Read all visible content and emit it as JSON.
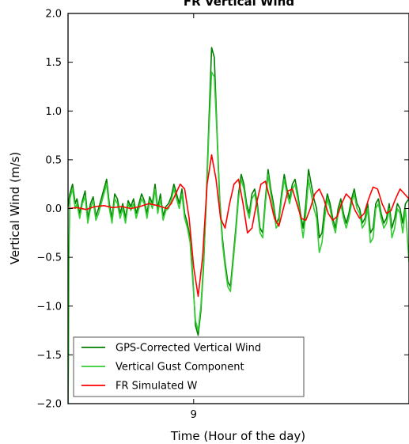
{
  "chart_data": {
    "type": "line",
    "title": "FR Vertical Wind",
    "xlabel": "Time (Hour of the day)",
    "ylabel": "Vertical Wind (m/s)",
    "xlim": [
      8.86,
      9.24
    ],
    "ylim": [
      -2.0,
      2.0
    ],
    "xticks": [
      {
        "value": 9.0,
        "label": "9"
      }
    ],
    "yticks": [
      {
        "value": 2.0,
        "label": "2.0"
      },
      {
        "value": 1.5,
        "label": "1.5"
      },
      {
        "value": 1.0,
        "label": "1.0"
      },
      {
        "value": 0.5,
        "label": "0.5"
      },
      {
        "value": 0.0,
        "label": "0.0"
      },
      {
        "value": -0.5,
        "label": "−0.5"
      },
      {
        "value": -1.0,
        "label": "−1.0"
      },
      {
        "value": -1.5,
        "label": "−1.5"
      },
      {
        "value": -2.0,
        "label": "−2.0"
      }
    ],
    "grid": false,
    "legend_position": "lower-left",
    "series": [
      {
        "name": "GPS-Corrected Vertical Wind",
        "color": "#007f00",
        "x": [
          8.86,
          8.862,
          8.865,
          8.868,
          8.87,
          8.873,
          8.876,
          8.879,
          8.882,
          8.885,
          8.888,
          8.891,
          8.894,
          8.897,
          8.9,
          8.903,
          8.906,
          8.909,
          8.912,
          8.915,
          8.918,
          8.921,
          8.924,
          8.927,
          8.93,
          8.933,
          8.936,
          8.939,
          8.942,
          8.945,
          8.948,
          8.951,
          8.954,
          8.957,
          8.96,
          8.963,
          8.966,
          8.969,
          8.972,
          8.975,
          8.978,
          8.981,
          8.984,
          8.987,
          8.99,
          8.993,
          8.996,
          8.999,
          9.002,
          9.005,
          9.008,
          9.011,
          9.014,
          9.017,
          9.02,
          9.023,
          9.026,
          9.029,
          9.032,
          9.035,
          9.038,
          9.041,
          9.044,
          9.047,
          9.05,
          9.053,
          9.056,
          9.059,
          9.062,
          9.065,
          9.068,
          9.071,
          9.074,
          9.077,
          9.08,
          9.083,
          9.086,
          9.089,
          9.092,
          9.095,
          9.098,
          9.101,
          9.104,
          9.107,
          9.11,
          9.113,
          9.116,
          9.119,
          9.122,
          9.125,
          9.128,
          9.131,
          9.134,
          9.137,
          9.14,
          9.143,
          9.146,
          9.149,
          9.152,
          9.155,
          9.158,
          9.161,
          9.164,
          9.167,
          9.17,
          9.173,
          9.176,
          9.179,
          9.182,
          9.185,
          9.188,
          9.191,
          9.194,
          9.197,
          9.2,
          9.203,
          9.206,
          9.209,
          9.212,
          9.215,
          9.218,
          9.221,
          9.224,
          9.227,
          9.23,
          9.233,
          9.236,
          9.24
        ],
        "values": [
          0.02,
          0.15,
          0.25,
          0.05,
          0.1,
          -0.05,
          0.08,
          0.18,
          -0.1,
          0.05,
          0.12,
          -0.08,
          0.0,
          0.1,
          0.2,
          0.3,
          0.05,
          -0.1,
          0.15,
          0.1,
          -0.05,
          0.05,
          -0.1,
          0.08,
          0.02,
          0.1,
          -0.05,
          0.05,
          0.15,
          0.08,
          -0.05,
          0.12,
          0.05,
          0.25,
          0.0,
          0.15,
          -0.08,
          0.02,
          0.05,
          0.12,
          0.25,
          0.15,
          0.05,
          0.2,
          -0.05,
          -0.15,
          -0.3,
          -0.7,
          -1.2,
          -1.3,
          -1.05,
          -0.6,
          0.1,
          0.9,
          1.65,
          1.55,
          0.8,
          0.1,
          -0.3,
          -0.55,
          -0.75,
          -0.8,
          -0.5,
          -0.2,
          0.15,
          0.35,
          0.25,
          0.05,
          -0.05,
          0.15,
          0.2,
          0.05,
          -0.2,
          -0.25,
          0.1,
          0.4,
          0.2,
          0.05,
          -0.15,
          -0.1,
          0.15,
          0.35,
          0.2,
          0.1,
          0.25,
          0.3,
          0.15,
          -0.05,
          -0.2,
          0.05,
          0.4,
          0.25,
          0.1,
          0.0,
          -0.3,
          -0.25,
          0.0,
          0.15,
          0.05,
          -0.1,
          -0.2,
          0.0,
          0.1,
          -0.05,
          -0.15,
          -0.05,
          0.1,
          0.2,
          0.05,
          0.0,
          -0.15,
          -0.1,
          0.05,
          -0.25,
          -0.2,
          0.05,
          0.1,
          -0.05,
          -0.15,
          -0.1,
          0.05,
          -0.2,
          -0.1,
          0.05,
          0.0,
          -0.15,
          0.05,
          0.1
        ]
      },
      {
        "name": "Vertical Gust Component",
        "color": "#33cc33",
        "x": [
          8.86,
          8.8605,
          8.861,
          8.862,
          8.865,
          8.868,
          8.87,
          8.873,
          8.876,
          8.879,
          8.882,
          8.885,
          8.888,
          8.891,
          8.894,
          8.897,
          8.9,
          8.903,
          8.906,
          8.909,
          8.912,
          8.915,
          8.918,
          8.921,
          8.924,
          8.927,
          8.93,
          8.933,
          8.936,
          8.939,
          8.942,
          8.945,
          8.948,
          8.951,
          8.954,
          8.957,
          8.96,
          8.963,
          8.966,
          8.969,
          8.972,
          8.975,
          8.978,
          8.981,
          8.984,
          8.987,
          8.99,
          8.993,
          8.996,
          8.999,
          9.002,
          9.005,
          9.008,
          9.011,
          9.014,
          9.017,
          9.02,
          9.023,
          9.026,
          9.029,
          9.032,
          9.035,
          9.038,
          9.041,
          9.044,
          9.047,
          9.05,
          9.053,
          9.056,
          9.059,
          9.062,
          9.065,
          9.068,
          9.071,
          9.074,
          9.077,
          9.08,
          9.083,
          9.086,
          9.089,
          9.092,
          9.095,
          9.098,
          9.101,
          9.104,
          9.107,
          9.11,
          9.113,
          9.116,
          9.119,
          9.122,
          9.125,
          9.128,
          9.131,
          9.134,
          9.137,
          9.14,
          9.143,
          9.146,
          9.149,
          9.152,
          9.155,
          9.158,
          9.161,
          9.164,
          9.167,
          9.17,
          9.173,
          9.176,
          9.179,
          9.182,
          9.185,
          9.188,
          9.191,
          9.194,
          9.197,
          9.2,
          9.203,
          9.206,
          9.209,
          9.212,
          9.215,
          9.218,
          9.221,
          9.224,
          9.227,
          9.23,
          9.233,
          9.236,
          9.24
        ],
        "values": [
          -2.0,
          -1.5,
          -0.5,
          0.1,
          0.2,
          0.0,
          0.05,
          -0.1,
          0.05,
          0.12,
          -0.15,
          0.0,
          0.08,
          -0.12,
          -0.05,
          0.05,
          0.15,
          0.25,
          0.0,
          -0.15,
          0.1,
          0.05,
          -0.1,
          0.0,
          -0.15,
          0.05,
          -0.02,
          0.05,
          -0.1,
          0.0,
          0.1,
          0.05,
          -0.1,
          0.08,
          0.0,
          0.2,
          -0.05,
          0.1,
          -0.12,
          -0.02,
          0.0,
          0.08,
          0.2,
          0.1,
          0.0,
          0.15,
          -0.1,
          -0.2,
          -0.35,
          -0.75,
          -1.15,
          -1.25,
          -1.0,
          -0.55,
          0.05,
          0.8,
          1.4,
          1.35,
          0.75,
          0.05,
          -0.35,
          -0.6,
          -0.8,
          -0.85,
          -0.55,
          -0.25,
          0.1,
          0.3,
          0.2,
          0.0,
          -0.1,
          0.1,
          0.15,
          0.0,
          -0.25,
          -0.3,
          0.05,
          0.35,
          0.15,
          0.0,
          -0.2,
          -0.15,
          0.1,
          0.3,
          0.15,
          0.05,
          0.2,
          0.25,
          0.1,
          -0.1,
          -0.3,
          -0.05,
          0.3,
          0.15,
          0.0,
          -0.1,
          -0.45,
          -0.35,
          -0.1,
          0.1,
          0.0,
          -0.15,
          -0.25,
          -0.05,
          0.05,
          -0.1,
          -0.2,
          -0.1,
          0.05,
          0.15,
          0.0,
          -0.05,
          -0.2,
          -0.15,
          0.0,
          -0.35,
          -0.3,
          0.0,
          0.05,
          -0.1,
          -0.2,
          -0.15,
          0.0,
          -0.3,
          -0.2,
          0.0,
          -0.05,
          -0.25,
          0.0,
          -0.55
        ]
      },
      {
        "name": "FR Simulated W",
        "color": "#ff0000",
        "x": [
          8.86,
          8.87,
          8.88,
          8.89,
          8.9,
          8.91,
          8.92,
          8.93,
          8.94,
          8.95,
          8.96,
          8.97,
          8.975,
          8.98,
          8.985,
          8.99,
          8.995,
          9.0,
          9.005,
          9.01,
          9.015,
          9.02,
          9.025,
          9.03,
          9.035,
          9.04,
          9.045,
          9.05,
          9.055,
          9.06,
          9.065,
          9.07,
          9.075,
          9.08,
          9.085,
          9.09,
          9.095,
          9.1,
          9.105,
          9.11,
          9.115,
          9.12,
          9.125,
          9.13,
          9.135,
          9.14,
          9.145,
          9.15,
          9.155,
          9.16,
          9.165,
          9.17,
          9.175,
          9.18,
          9.185,
          9.19,
          9.195,
          9.2,
          9.205,
          9.21,
          9.215,
          9.22,
          9.225,
          9.23,
          9.235,
          9.24
        ],
        "values": [
          0.0,
          0.01,
          -0.01,
          0.02,
          0.03,
          0.01,
          0.02,
          0.0,
          0.02,
          0.05,
          0.03,
          0.0,
          0.05,
          0.15,
          0.25,
          0.2,
          -0.1,
          -0.6,
          -0.9,
          -0.5,
          0.25,
          0.55,
          0.3,
          -0.1,
          -0.2,
          0.05,
          0.25,
          0.3,
          0.05,
          -0.25,
          -0.2,
          0.05,
          0.25,
          0.28,
          0.1,
          -0.1,
          -0.18,
          0.0,
          0.18,
          0.2,
          0.05,
          -0.1,
          -0.12,
          0.0,
          0.15,
          0.2,
          0.1,
          -0.05,
          -0.12,
          -0.08,
          0.05,
          0.15,
          0.1,
          -0.02,
          -0.1,
          -0.05,
          0.1,
          0.22,
          0.2,
          0.05,
          -0.05,
          -0.02,
          0.1,
          0.2,
          0.15,
          0.1
        ]
      }
    ]
  }
}
